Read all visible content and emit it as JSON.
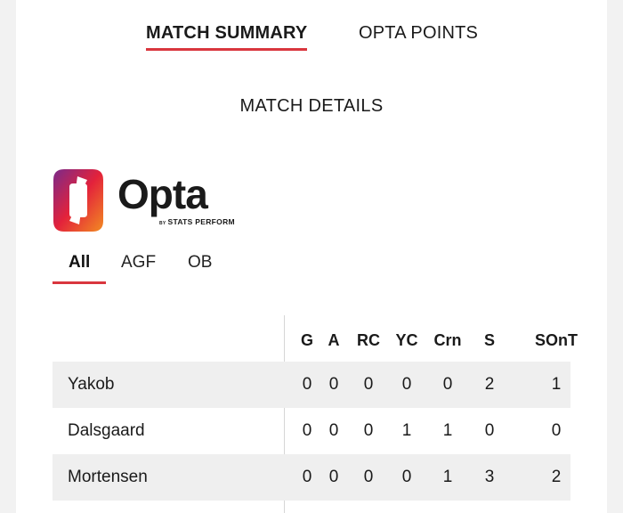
{
  "top_tabs": [
    {
      "label": "MATCH SUMMARY",
      "active": true
    },
    {
      "label": "OPTA POINTS",
      "active": false
    }
  ],
  "section_title": "MATCH DETAILS",
  "logo": {
    "wordmark": "Opta",
    "by": "BY",
    "byline": "STATS PERFORM",
    "gradient_colors": [
      "#7b2a8a",
      "#e3223b",
      "#f28b22"
    ]
  },
  "team_tabs": [
    {
      "label": "All",
      "active": true
    },
    {
      "label": "AGF",
      "active": false
    },
    {
      "label": "OB",
      "active": false
    }
  ],
  "accent_color": "#d9363e",
  "stats": {
    "columns": [
      "G",
      "A",
      "RC",
      "YC",
      "Crn",
      "S",
      "SOnT"
    ],
    "rows": [
      {
        "name": "Yakob",
        "values": [
          "0",
          "0",
          "0",
          "0",
          "0",
          "2",
          "1"
        ]
      },
      {
        "name": "Dalsgaard",
        "values": [
          "0",
          "0",
          "0",
          "1",
          "1",
          "0",
          "0"
        ]
      },
      {
        "name": "Mortensen",
        "values": [
          "0",
          "0",
          "0",
          "0",
          "1",
          "3",
          "2"
        ]
      }
    ]
  }
}
